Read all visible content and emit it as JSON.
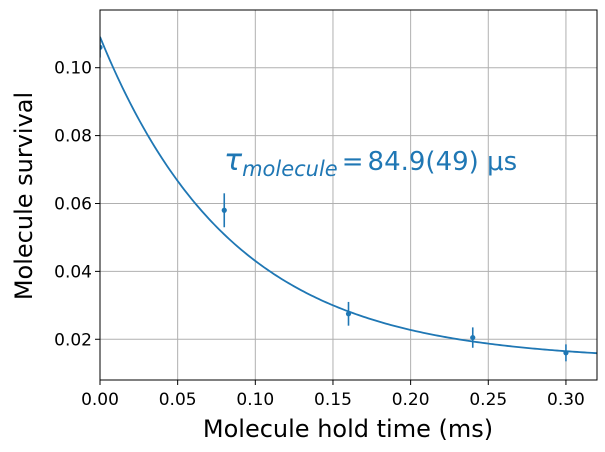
{
  "chart_data": {
    "type": "scatter",
    "xlabel": "Molecule hold time (ms)",
    "ylabel": "Molecule survival",
    "xlim": [
      0.0,
      0.32
    ],
    "ylim": [
      0.008,
      0.117
    ],
    "xticks": [
      "0.00",
      "0.05",
      "0.10",
      "0.15",
      "0.20",
      "0.25",
      "0.30"
    ],
    "yticks": [
      "0.02",
      "0.04",
      "0.06",
      "0.08",
      "0.10"
    ],
    "grid": true,
    "color": "#1f77b4",
    "points": [
      {
        "x": 0.0,
        "y": 0.106,
        "err": 0.003
      },
      {
        "x": 0.08,
        "y": 0.058,
        "err": 0.005
      },
      {
        "x": 0.16,
        "y": 0.0275,
        "err": 0.0035
      },
      {
        "x": 0.24,
        "y": 0.0205,
        "err": 0.003
      },
      {
        "x": 0.3,
        "y": 0.016,
        "err": 0.0025
      }
    ],
    "fit": {
      "model": "exponential decay with offset",
      "amplitude": 0.0954,
      "tau_ms": 0.0849,
      "offset": 0.0137
    },
    "annotation": {
      "symbol": "τ",
      "subscript": "molecule",
      "equals": "=",
      "value": "84.9(49) μs"
    }
  }
}
